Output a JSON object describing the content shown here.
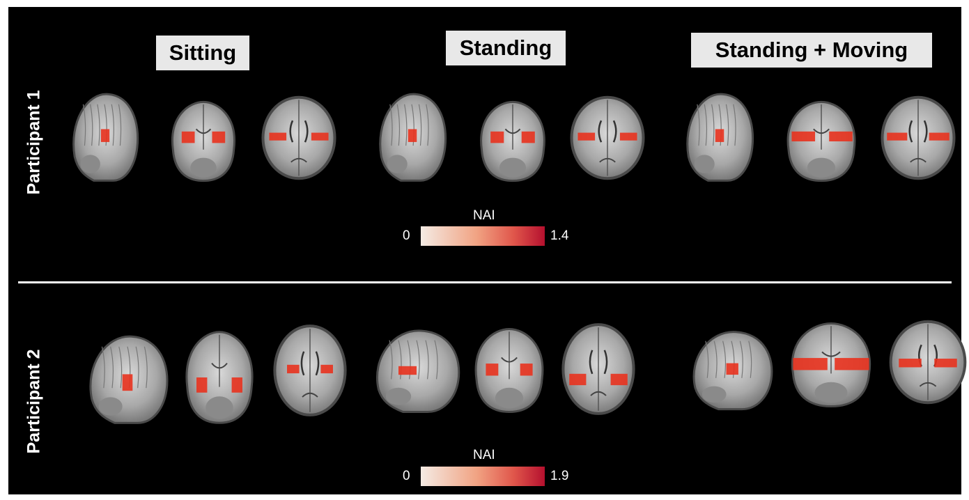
{
  "conditions": [
    "Sitting",
    "Standing",
    "Standing + Moving"
  ],
  "participants": [
    "Participant 1",
    "Participant 2"
  ],
  "colorbars": [
    {
      "title": "NAI",
      "min": "0",
      "max": "1.4"
    },
    {
      "title": "NAI",
      "min": "0",
      "max": "1.9"
    }
  ],
  "colors": {
    "background": "#000000",
    "label_box": "#e8e8e8",
    "scale_low": "#f4ebe4",
    "scale_mid": "#ef8a6b",
    "scale_high": "#b5102e",
    "activation": "#e8321e"
  },
  "views": [
    "sagittal",
    "coronal",
    "axial"
  ]
}
